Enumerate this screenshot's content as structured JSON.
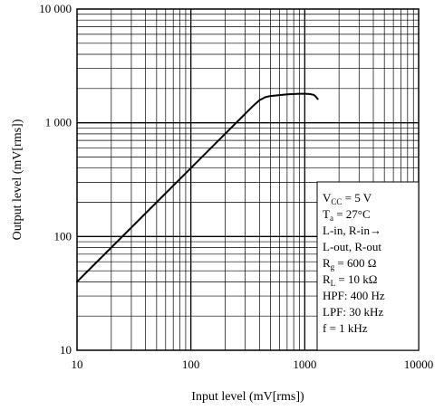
{
  "chart_data": {
    "type": "line",
    "xlabel": "Input level  (mV[rms])",
    "ylabel": "Output level  (mV[rms])",
    "x_scale": "log",
    "y_scale": "log",
    "xlim": [
      10,
      10000
    ],
    "ylim": [
      10,
      10000
    ],
    "x_ticks": [
      "10",
      "100",
      "1000",
      "10000"
    ],
    "y_ticks": [
      "10",
      "100",
      "1 000",
      "10 000"
    ],
    "grid": true,
    "series": [
      {
        "points": [
          [
            10,
            40
          ],
          [
            20,
            80
          ],
          [
            50,
            200
          ],
          [
            100,
            400
          ],
          [
            200,
            800
          ],
          [
            300,
            1200
          ],
          [
            350,
            1400
          ],
          [
            400,
            1580
          ],
          [
            450,
            1680
          ],
          [
            500,
            1720
          ],
          [
            600,
            1750
          ],
          [
            700,
            1780
          ],
          [
            800,
            1790
          ],
          [
            900,
            1800
          ],
          [
            1000,
            1800
          ],
          [
            1100,
            1790
          ],
          [
            1200,
            1760
          ],
          [
            1250,
            1700
          ],
          [
            1300,
            1620
          ]
        ]
      }
    ],
    "annotation": {
      "lines": [
        {
          "main": "V",
          "sub": "CC",
          "rest": " = 5 V"
        },
        {
          "main": "T",
          "sub": "a",
          "rest": " = 27°C"
        },
        {
          "main": "L-in, R-in→",
          "sub": "",
          "rest": ""
        },
        {
          "main": "L-out, R-out",
          "sub": "",
          "rest": ""
        },
        {
          "main": "R",
          "sub": "g",
          "rest": " = 600 Ω"
        },
        {
          "main": "R",
          "sub": "L",
          "rest": " = 10 kΩ"
        },
        {
          "main": "HPF: 400 Hz",
          "sub": "",
          "rest": ""
        },
        {
          "main": "LPF: 30 kHz",
          "sub": "",
          "rest": ""
        },
        {
          "main": "f = 1 kHz",
          "sub": "",
          "rest": ""
        }
      ]
    }
  }
}
